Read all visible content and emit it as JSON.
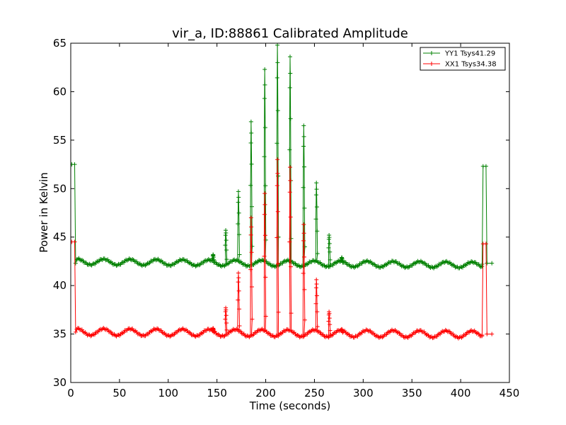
{
  "chart_data": {
    "type": "line",
    "title": "vir_a, ID:88861 Calibrated Amplitude",
    "xlabel": "Time (seconds)",
    "ylabel": "Power in Kelvin",
    "xlim": [
      0,
      450
    ],
    "ylim": [
      30,
      65
    ],
    "xticks": [
      "0",
      "50",
      "100",
      "150",
      "200",
      "250",
      "300",
      "350",
      "400",
      "450"
    ],
    "yticks": [
      "30",
      "35",
      "40",
      "45",
      "50",
      "55",
      "60",
      "65"
    ],
    "grid": false,
    "legend_position": "top-right",
    "marker": "+",
    "series": [
      {
        "name": "YY1 Tsys41.29",
        "color": "#008000",
        "baseline": 42.3,
        "start": [
          [
            1,
            52.5
          ],
          [
            4,
            52.5
          ],
          [
            5,
            42.3
          ]
        ],
        "end": [
          [
            422,
            42.2
          ],
          [
            423,
            52.3
          ],
          [
            426,
            52.3
          ],
          [
            427,
            42.3
          ],
          [
            432,
            42.3
          ]
        ],
        "peaks": [
          [
            146,
            43.2
          ],
          [
            159,
            45.7
          ],
          [
            172,
            49.7
          ],
          [
            185,
            56.9
          ],
          [
            199,
            62.3
          ],
          [
            212,
            64.8
          ],
          [
            225,
            63.6
          ],
          [
            239,
            56.5
          ],
          [
            252,
            50.6
          ],
          [
            265,
            45.2
          ],
          [
            278,
            42.9
          ]
        ],
        "ripple_amplitude": 0.3,
        "ripple_period": 27
      },
      {
        "name": "XX1 Tsys34.38",
        "color": "#ff0000",
        "baseline": 35.1,
        "start": [
          [
            1,
            44.5
          ],
          [
            4,
            44.5
          ],
          [
            5,
            35.2
          ]
        ],
        "end": [
          [
            422,
            34.9
          ],
          [
            423,
            44.3
          ],
          [
            426,
            44.3
          ],
          [
            427,
            35.0
          ],
          [
            432,
            35.0
          ]
        ],
        "peaks": [
          [
            146,
            35.6
          ],
          [
            159,
            37.7
          ],
          [
            172,
            41.3
          ],
          [
            185,
            47.0
          ],
          [
            199,
            49.5
          ],
          [
            212,
            53.0
          ],
          [
            225,
            52.2
          ],
          [
            239,
            46.3
          ],
          [
            252,
            40.6
          ],
          [
            265,
            37.3
          ],
          [
            278,
            35.5
          ]
        ],
        "ripple_amplitude": 0.35,
        "ripple_period": 27
      }
    ]
  }
}
